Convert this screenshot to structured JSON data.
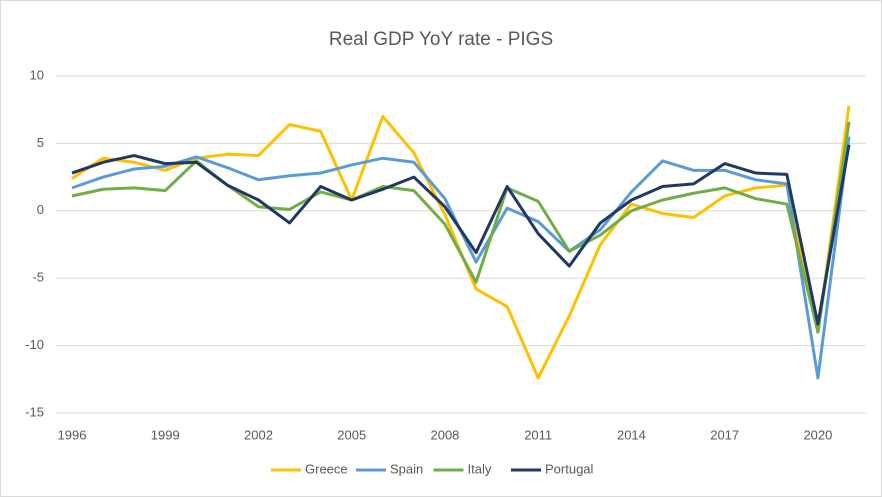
{
  "chart_data": {
    "type": "line",
    "title": "Real GDP YoY rate - PIGS",
    "x": [
      1996,
      1997,
      1998,
      1999,
      2000,
      2001,
      2002,
      2003,
      2004,
      2005,
      2006,
      2007,
      2008,
      2009,
      2010,
      2011,
      2012,
      2013,
      2014,
      2015,
      2016,
      2017,
      2018,
      2019,
      2020,
      2021
    ],
    "series": [
      {
        "name": "Greece",
        "color": "#ffc000",
        "values": [
          2.4,
          3.9,
          3.6,
          3.0,
          3.9,
          4.2,
          4.1,
          6.4,
          5.9,
          0.8,
          7.0,
          4.3,
          -0.3,
          -5.8,
          -7.1,
          -12.4,
          -7.8,
          -2.5,
          0.5,
          -0.2,
          -0.5,
          1.1,
          1.7,
          1.9,
          -9.0,
          7.8
        ]
      },
      {
        "name": "Spain",
        "color": "#5b9bd5",
        "values": [
          1.7,
          2.5,
          3.1,
          3.3,
          4.0,
          3.2,
          2.3,
          2.6,
          2.8,
          3.4,
          3.9,
          3.6,
          0.9,
          -3.8,
          0.2,
          -0.8,
          -3.0,
          -1.4,
          1.4,
          3.7,
          3.0,
          3.0,
          2.3,
          2.0,
          -12.4,
          5.5
        ]
      },
      {
        "name": "Italy",
        "color": "#70ad47",
        "values": [
          1.1,
          1.6,
          1.7,
          1.5,
          3.7,
          1.9,
          0.3,
          0.1,
          1.4,
          0.8,
          1.8,
          1.5,
          -1.0,
          -5.3,
          1.7,
          0.7,
          -3.0,
          -1.8,
          0.0,
          0.8,
          1.3,
          1.7,
          0.9,
          0.5,
          -9.0,
          6.6
        ]
      },
      {
        "name": "Portugal",
        "color": "#203864",
        "values": [
          2.8,
          3.6,
          4.1,
          3.5,
          3.6,
          1.9,
          0.8,
          -0.9,
          1.8,
          0.8,
          1.6,
          2.5,
          0.3,
          -3.1,
          1.8,
          -1.7,
          -4.1,
          -0.9,
          0.8,
          1.8,
          2.0,
          3.5,
          2.8,
          2.7,
          -8.4,
          4.9
        ]
      }
    ],
    "xlim": [
      1996,
      2021
    ],
    "xticks": [
      1996,
      1999,
      2002,
      2005,
      2008,
      2011,
      2014,
      2017,
      2020
    ],
    "ylim": [
      -15,
      10
    ],
    "yticks": [
      -15,
      -10,
      -5,
      0,
      5,
      10
    ],
    "grid": true,
    "legend": "bottom"
  }
}
